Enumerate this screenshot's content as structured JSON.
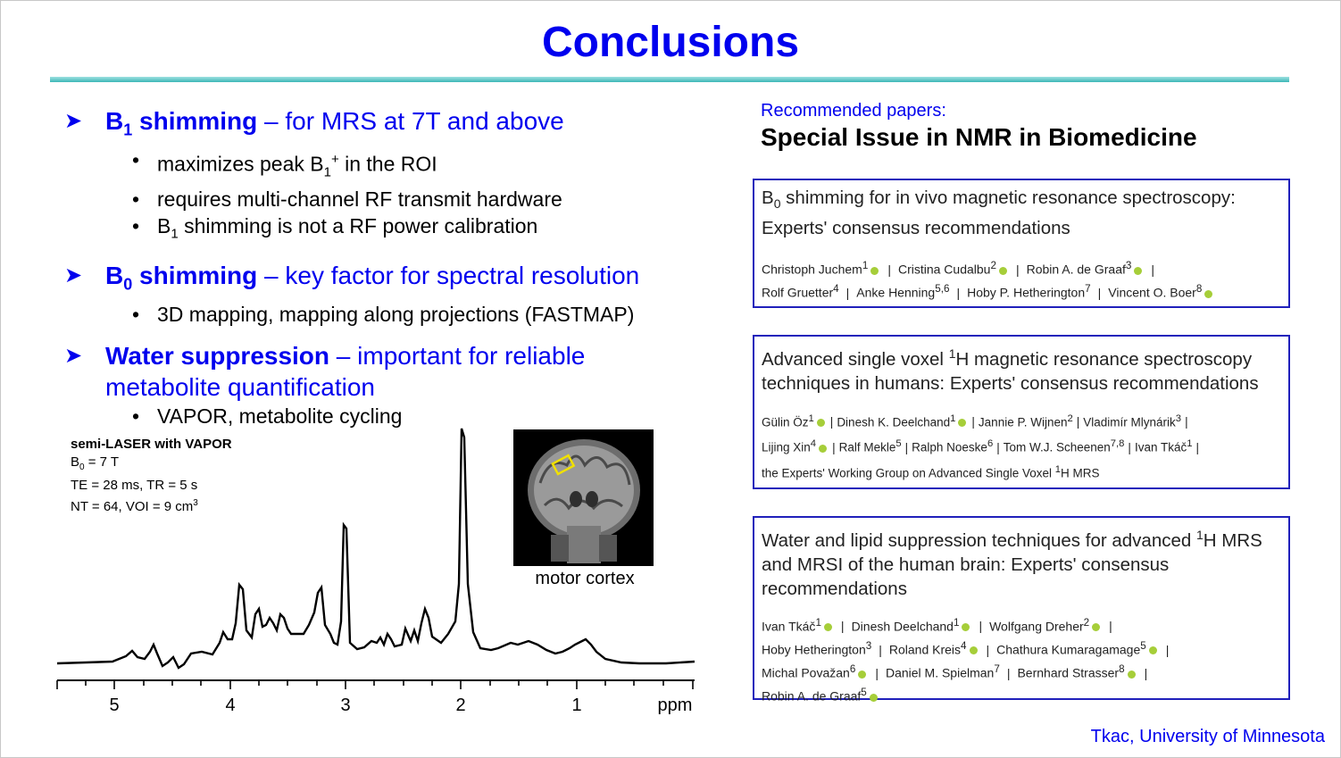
{
  "title": "Conclusions",
  "bullets": [
    {
      "key_main": "B",
      "key_sub": "1",
      "key_tail": " shimming",
      "desc": " – for MRS at 7T and above"
    },
    {
      "key_main": "B",
      "key_sub": "0",
      "key_tail": " shimming",
      "desc": " – key factor for spectral resolution"
    },
    {
      "key": "Water suppression",
      "desc": " – important for reliable",
      "desc2": "metabolite quantification"
    }
  ],
  "b1_items": {
    "a_pre": "maximizes peak B",
    "a_sub": "1",
    "a_sup": "+",
    "a_post": " in the ROI",
    "b": "requires multi-channel RF transmit hardware",
    "c_pre": "B",
    "c_sub": "1",
    "c_post": " shimming is not a RF power calibration"
  },
  "b0_item": "3D mapping, mapping along projections (FASTMAP)",
  "water_item": "VAPOR, metabolite cycling",
  "spectrum": {
    "heading": "semi-LASER  with VAPOR",
    "b0_pre": "B",
    "b0_sub": "0",
    "b0_post": " = 7 T",
    "te_tr": "TE  = 28 ms, TR  = 5 s",
    "nt_pre": "NT  = 64, VOI = 9 cm",
    "nt_sup": "3",
    "axis_ticks": [
      "5",
      "4",
      "3",
      "2",
      "1"
    ],
    "axis_unit": "ppm"
  },
  "image_caption": "motor cortex",
  "recommended_label": "Recommended papers:",
  "recommended_title": "Special Issue in NMR in Biomedicine",
  "papers": [
    {
      "t_pre": "B",
      "t_sub": "0",
      "t_rest": " shimming for in vivo magnetic resonance spectroscopy:",
      "t_line2": "Experts' consensus recommendations",
      "a1": "Christoph Juchem",
      "a1s": "1",
      "a2": "Cristina Cudalbu",
      "a2s": "2",
      "a3": "Robin A. de Graaf",
      "a3s": "3",
      "a4": "Rolf Gruetter",
      "a4s": "4",
      "a5": "Anke Henning",
      "a5s": "5,6",
      "a6": "Hoby P. Hetherington",
      "a6s": "7",
      "a7": "Vincent O. Boer",
      "a7s": "8"
    },
    {
      "t_pre": "Advanced single voxel ",
      "t_sup": "1",
      "t_rest": "H magnetic resonance spectroscopy",
      "t_line2": "techniques in humans: Experts' consensus recommendations",
      "a1": "Gülin Öz",
      "a1s": "1",
      "a2": "Dinesh K. Deelchand",
      "a2s": "1",
      "a3": "Jannie P. Wijnen",
      "a3s": "2",
      "a4": "Vladimír Mlynárik",
      "a4s": "3",
      "a5": "Lijing Xin",
      "a5s": "4",
      "a6": "Ralf Mekle",
      "a6s": "5",
      "a7": "Ralph Noeske",
      "a7s": "6",
      "a8": "Tom W.J. Scheenen",
      "a8s": "7,8",
      "a9": "Ivan Tkáč",
      "a9s": "1",
      "group_pre": "the Experts' Working Group on Advanced Single Voxel ",
      "group_sup": "1",
      "group_post": "H MRS"
    },
    {
      "t_pre": "Water and lipid suppression techniques for advanced ",
      "t_sup": "1",
      "t_rest": "H MRS",
      "t_line2": "and MRSI of the human brain: Experts' consensus",
      "t_line3": "recommendations",
      "a1": "Ivan Tkáč",
      "a1s": "1",
      "a2": "Dinesh Deelchand",
      "a2s": "1",
      "a3": "Wolfgang Dreher",
      "a3s": "2",
      "a4": "Hoby Hetherington",
      "a4s": "3",
      "a5": "Roland Kreis",
      "a5s": "4",
      "a6": "Chathura Kumaragamage",
      "a6s": "5",
      "a7": "Michal Považan",
      "a7s": "6",
      "a8": "Daniel M. Spielman",
      "a8s": "7",
      "a9": "Bernhard Strasser",
      "a9s": "8",
      "a10": "Robin A. de Graaf",
      "a10s": "5"
    }
  ],
  "footer": "Tkac, University of Minnesota"
}
